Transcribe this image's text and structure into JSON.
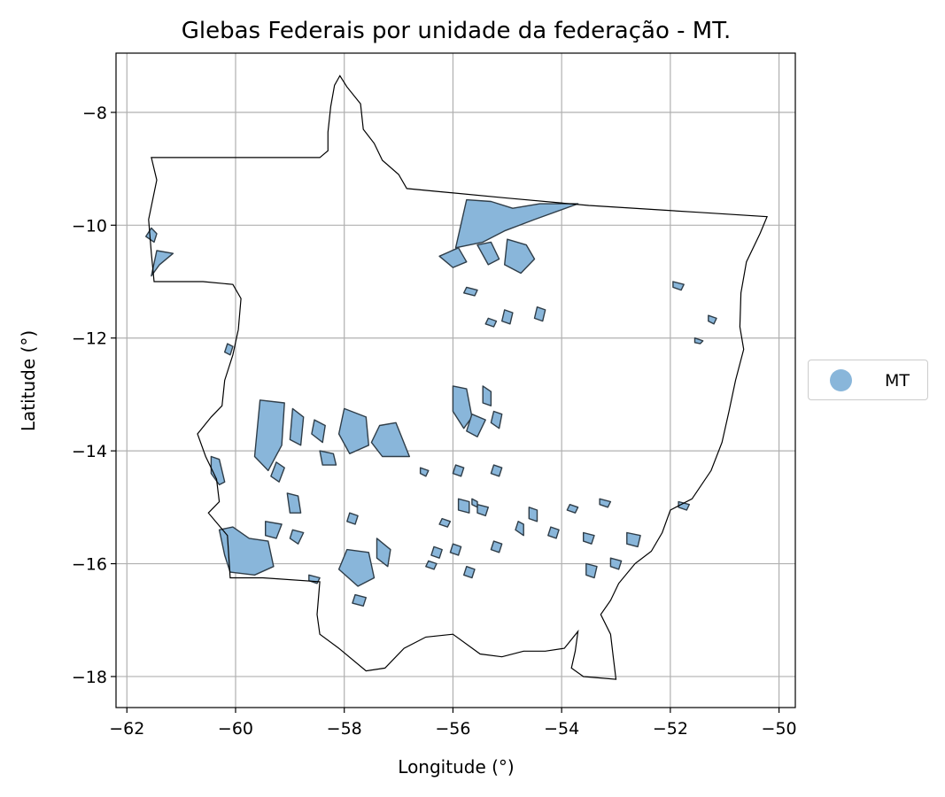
{
  "chart_data": {
    "type": "map",
    "title": "Glebas Federais por unidade da federação - MT.",
    "xlabel": "Longitude (°)",
    "ylabel": "Latitude (°)",
    "xlim": [
      -62.2,
      -49.7
    ],
    "ylim": [
      -18.55,
      -6.95
    ],
    "xticks": [
      -62,
      -60,
      -58,
      -56,
      -54,
      -52,
      -50
    ],
    "yticks": [
      -8,
      -10,
      -12,
      -14,
      -16,
      -18
    ],
    "xtick_labels": [
      "−62",
      "−60",
      "−58",
      "−56",
      "−54",
      "−52",
      "−50"
    ],
    "ytick_labels": [
      "−8",
      "−10",
      "−12",
      "−14",
      "−16",
      "−18"
    ],
    "grid": true,
    "legend": {
      "placement": "outside-right",
      "entries": [
        {
          "label": "MT",
          "color": "#89b6da"
        }
      ]
    },
    "colors": {
      "fill": "#89b6da",
      "edge": "#2f3d48",
      "boundary": "#000000",
      "grid": "#b0b0b0"
    },
    "state_boundary": [
      [
        -61.55,
        -8.8
      ],
      [
        -59.55,
        -8.8
      ],
      [
        -58.45,
        -8.8
      ],
      [
        -58.3,
        -8.68
      ],
      [
        -58.3,
        -8.35
      ],
      [
        -58.25,
        -7.9
      ],
      [
        -58.18,
        -7.52
      ],
      [
        -58.08,
        -7.35
      ],
      [
        -57.95,
        -7.55
      ],
      [
        -57.7,
        -7.85
      ],
      [
        -57.65,
        -8.3
      ],
      [
        -57.45,
        -8.55
      ],
      [
        -57.3,
        -8.85
      ],
      [
        -57.0,
        -9.1
      ],
      [
        -56.85,
        -9.35
      ],
      [
        -56.3,
        -9.4
      ],
      [
        -55.0,
        -9.52
      ],
      [
        -53.5,
        -9.65
      ],
      [
        -51.5,
        -9.77
      ],
      [
        -50.22,
        -9.85
      ],
      [
        -50.35,
        -10.15
      ],
      [
        -50.6,
        -10.65
      ],
      [
        -50.7,
        -11.2
      ],
      [
        -50.72,
        -11.8
      ],
      [
        -50.65,
        -12.2
      ],
      [
        -50.8,
        -12.75
      ],
      [
        -50.92,
        -13.3
      ],
      [
        -51.05,
        -13.85
      ],
      [
        -51.25,
        -14.35
      ],
      [
        -51.6,
        -14.85
      ],
      [
        -52.0,
        -15.05
      ],
      [
        -52.15,
        -15.45
      ],
      [
        -52.35,
        -15.78
      ],
      [
        -52.65,
        -16.0
      ],
      [
        -52.95,
        -16.35
      ],
      [
        -53.1,
        -16.65
      ],
      [
        -53.28,
        -16.9
      ],
      [
        -53.1,
        -17.25
      ],
      [
        -53.05,
        -17.65
      ],
      [
        -53.0,
        -18.05
      ],
      [
        -53.6,
        -18.0
      ],
      [
        -53.82,
        -17.85
      ],
      [
        -53.75,
        -17.55
      ],
      [
        -53.7,
        -17.2
      ],
      [
        -53.95,
        -17.5
      ],
      [
        -54.3,
        -17.55
      ],
      [
        -54.7,
        -17.55
      ],
      [
        -55.1,
        -17.65
      ],
      [
        -55.5,
        -17.6
      ],
      [
        -56.0,
        -17.25
      ],
      [
        -56.5,
        -17.3
      ],
      [
        -56.9,
        -17.5
      ],
      [
        -57.25,
        -17.85
      ],
      [
        -57.6,
        -17.9
      ],
      [
        -58.1,
        -17.5
      ],
      [
        -58.45,
        -17.25
      ],
      [
        -58.5,
        -16.9
      ],
      [
        -58.45,
        -16.32
      ],
      [
        -59.5,
        -16.25
      ],
      [
        -60.1,
        -16.25
      ],
      [
        -60.15,
        -15.5
      ],
      [
        -60.5,
        -15.1
      ],
      [
        -60.3,
        -14.9
      ],
      [
        -60.35,
        -14.5
      ],
      [
        -60.55,
        -14.1
      ],
      [
        -60.7,
        -13.7
      ],
      [
        -60.45,
        -13.4
      ],
      [
        -60.25,
        -13.2
      ],
      [
        -60.2,
        -12.75
      ],
      [
        -60.05,
        -12.3
      ],
      [
        -59.95,
        -11.85
      ],
      [
        -59.9,
        -11.3
      ],
      [
        -60.05,
        -11.05
      ],
      [
        -60.6,
        -11.0
      ],
      [
        -61.5,
        -11.0
      ],
      [
        -61.55,
        -10.5
      ],
      [
        -61.6,
        -9.9
      ],
      [
        -61.45,
        -9.2
      ],
      [
        -61.55,
        -8.8
      ]
    ],
    "land_parcels": [
      [
        [
          -55.95,
          -10.4
        ],
        [
          -55.75,
          -9.55
        ],
        [
          -55.3,
          -9.58
        ],
        [
          -54.9,
          -9.7
        ],
        [
          -54.4,
          -9.62
        ],
        [
          -53.7,
          -9.62
        ],
        [
          -54.5,
          -9.9
        ],
        [
          -55.05,
          -10.1
        ],
        [
          -55.45,
          -10.3
        ]
      ],
      [
        [
          -55.0,
          -10.25
        ],
        [
          -54.65,
          -10.35
        ],
        [
          -54.5,
          -10.6
        ],
        [
          -54.75,
          -10.85
        ],
        [
          -55.05,
          -10.7
        ]
      ],
      [
        [
          -55.55,
          -10.35
        ],
        [
          -55.3,
          -10.3
        ],
        [
          -55.15,
          -10.6
        ],
        [
          -55.35,
          -10.7
        ]
      ],
      [
        [
          -56.25,
          -10.55
        ],
        [
          -55.9,
          -10.4
        ],
        [
          -55.75,
          -10.65
        ],
        [
          -56.0,
          -10.75
        ]
      ],
      [
        [
          -61.55,
          -10.05
        ],
        [
          -61.45,
          -10.15
        ],
        [
          -61.5,
          -10.3
        ],
        [
          -61.65,
          -10.2
        ]
      ],
      [
        [
          -61.45,
          -10.45
        ],
        [
          -61.15,
          -10.5
        ],
        [
          -61.4,
          -10.7
        ],
        [
          -61.55,
          -10.9
        ]
      ],
      [
        [
          -59.55,
          -13.1
        ],
        [
          -59.1,
          -13.15
        ],
        [
          -59.15,
          -13.9
        ],
        [
          -59.4,
          -14.35
        ],
        [
          -59.65,
          -14.1
        ]
      ],
      [
        [
          -58.95,
          -13.25
        ],
        [
          -58.75,
          -13.4
        ],
        [
          -58.8,
          -13.9
        ],
        [
          -59.0,
          -13.8
        ]
      ],
      [
        [
          -58.0,
          -13.25
        ],
        [
          -57.6,
          -13.4
        ],
        [
          -57.55,
          -13.9
        ],
        [
          -57.9,
          -14.05
        ],
        [
          -58.1,
          -13.7
        ]
      ],
      [
        [
          -57.35,
          -13.55
        ],
        [
          -57.05,
          -13.5
        ],
        [
          -56.8,
          -14.1
        ],
        [
          -57.3,
          -14.1
        ],
        [
          -57.5,
          -13.85
        ]
      ],
      [
        [
          -58.55,
          -13.45
        ],
        [
          -58.35,
          -13.55
        ],
        [
          -58.4,
          -13.85
        ],
        [
          -58.6,
          -13.7
        ]
      ],
      [
        [
          -58.45,
          -14.0
        ],
        [
          -58.2,
          -14.05
        ],
        [
          -58.15,
          -14.25
        ],
        [
          -58.4,
          -14.25
        ]
      ],
      [
        [
          -59.25,
          -14.2
        ],
        [
          -59.1,
          -14.3
        ],
        [
          -59.2,
          -14.55
        ],
        [
          -59.35,
          -14.45
        ]
      ],
      [
        [
          -56.0,
          -12.85
        ],
        [
          -55.75,
          -12.9
        ],
        [
          -55.65,
          -13.4
        ],
        [
          -55.8,
          -13.6
        ],
        [
          -56.0,
          -13.3
        ]
      ],
      [
        [
          -55.65,
          -13.35
        ],
        [
          -55.4,
          -13.45
        ],
        [
          -55.55,
          -13.75
        ],
        [
          -55.75,
          -13.65
        ]
      ],
      [
        [
          -55.45,
          -12.85
        ],
        [
          -55.3,
          -12.95
        ],
        [
          -55.3,
          -13.2
        ],
        [
          -55.45,
          -13.15
        ]
      ],
      [
        [
          -55.25,
          -13.3
        ],
        [
          -55.1,
          -13.35
        ],
        [
          -55.15,
          -13.6
        ],
        [
          -55.3,
          -13.5
        ]
      ],
      [
        [
          -60.45,
          -14.1
        ],
        [
          -60.3,
          -14.15
        ],
        [
          -60.2,
          -14.55
        ],
        [
          -60.3,
          -14.6
        ],
        [
          -60.45,
          -14.4
        ]
      ],
      [
        [
          -60.3,
          -15.4
        ],
        [
          -60.05,
          -15.35
        ],
        [
          -59.75,
          -15.55
        ],
        [
          -59.4,
          -15.6
        ],
        [
          -59.3,
          -16.05
        ],
        [
          -59.65,
          -16.2
        ],
        [
          -60.1,
          -16.15
        ],
        [
          -60.2,
          -15.85
        ]
      ],
      [
        [
          -59.45,
          -15.25
        ],
        [
          -59.15,
          -15.3
        ],
        [
          -59.25,
          -15.55
        ],
        [
          -59.45,
          -15.5
        ]
      ],
      [
        [
          -58.95,
          -15.4
        ],
        [
          -58.75,
          -15.45
        ],
        [
          -58.85,
          -15.65
        ],
        [
          -59.0,
          -15.55
        ]
      ],
      [
        [
          -57.95,
          -15.75
        ],
        [
          -57.55,
          -15.8
        ],
        [
          -57.45,
          -16.25
        ],
        [
          -57.75,
          -16.4
        ],
        [
          -58.1,
          -16.1
        ]
      ],
      [
        [
          -57.4,
          -15.55
        ],
        [
          -57.15,
          -15.75
        ],
        [
          -57.2,
          -16.05
        ],
        [
          -57.4,
          -15.9
        ]
      ],
      [
        [
          -57.8,
          -16.55
        ],
        [
          -57.6,
          -16.6
        ],
        [
          -57.65,
          -16.75
        ],
        [
          -57.85,
          -16.7
        ]
      ],
      [
        [
          -59.05,
          -14.75
        ],
        [
          -58.85,
          -14.8
        ],
        [
          -58.8,
          -15.1
        ],
        [
          -59.0,
          -15.1
        ]
      ],
      [
        [
          -58.65,
          -16.2
        ],
        [
          -58.45,
          -16.25
        ],
        [
          -58.5,
          -16.35
        ],
        [
          -58.65,
          -16.3
        ]
      ],
      [
        [
          -55.9,
          -14.85
        ],
        [
          -55.7,
          -14.9
        ],
        [
          -55.7,
          -15.1
        ],
        [
          -55.9,
          -15.05
        ]
      ],
      [
        [
          -55.55,
          -14.95
        ],
        [
          -55.35,
          -15.0
        ],
        [
          -55.4,
          -15.15
        ],
        [
          -55.55,
          -15.1
        ]
      ],
      [
        [
          -54.6,
          -15.0
        ],
        [
          -54.45,
          -15.05
        ],
        [
          -54.45,
          -15.25
        ],
        [
          -54.6,
          -15.2
        ]
      ],
      [
        [
          -53.6,
          -15.45
        ],
        [
          -53.4,
          -15.5
        ],
        [
          -53.45,
          -15.65
        ],
        [
          -53.6,
          -15.6
        ]
      ],
      [
        [
          -52.8,
          -15.45
        ],
        [
          -52.55,
          -15.5
        ],
        [
          -52.6,
          -15.7
        ],
        [
          -52.8,
          -15.65
        ]
      ],
      [
        [
          -53.3,
          -14.85
        ],
        [
          -53.1,
          -14.9
        ],
        [
          -53.15,
          -15.0
        ],
        [
          -53.3,
          -14.95
        ]
      ],
      [
        [
          -51.85,
          -14.9
        ],
        [
          -51.65,
          -14.95
        ],
        [
          -51.7,
          -15.05
        ],
        [
          -51.85,
          -15.0
        ]
      ],
      [
        [
          -55.25,
          -15.6
        ],
        [
          -55.1,
          -15.65
        ],
        [
          -55.15,
          -15.8
        ],
        [
          -55.3,
          -15.75
        ]
      ],
      [
        [
          -54.8,
          -15.25
        ],
        [
          -54.7,
          -15.3
        ],
        [
          -54.7,
          -15.5
        ],
        [
          -54.85,
          -15.4
        ]
      ],
      [
        [
          -56.0,
          -15.65
        ],
        [
          -55.85,
          -15.7
        ],
        [
          -55.9,
          -15.85
        ],
        [
          -56.05,
          -15.8
        ]
      ],
      [
        [
          -56.2,
          -15.2
        ],
        [
          -56.05,
          -15.25
        ],
        [
          -56.1,
          -15.35
        ],
        [
          -56.25,
          -15.3
        ]
      ],
      [
        [
          -51.95,
          -11.0
        ],
        [
          -51.75,
          -11.05
        ],
        [
          -51.8,
          -11.15
        ],
        [
          -51.95,
          -11.1
        ]
      ],
      [
        [
          -51.3,
          -11.6
        ],
        [
          -51.15,
          -11.65
        ],
        [
          -51.2,
          -11.75
        ],
        [
          -51.3,
          -11.7
        ]
      ],
      [
        [
          -51.55,
          -12.0
        ],
        [
          -51.4,
          -12.05
        ],
        [
          -51.45,
          -12.1
        ],
        [
          -51.55,
          -12.08
        ]
      ],
      [
        [
          -55.05,
          -11.5
        ],
        [
          -54.9,
          -11.55
        ],
        [
          -54.95,
          -11.75
        ],
        [
          -55.1,
          -11.7
        ]
      ],
      [
        [
          -54.45,
          -11.45
        ],
        [
          -54.3,
          -11.5
        ],
        [
          -54.35,
          -11.7
        ],
        [
          -54.5,
          -11.65
        ]
      ],
      [
        [
          -55.35,
          -11.65
        ],
        [
          -55.2,
          -11.7
        ],
        [
          -55.25,
          -11.8
        ],
        [
          -55.4,
          -11.75
        ]
      ],
      [
        [
          -55.75,
          -11.1
        ],
        [
          -55.55,
          -11.15
        ],
        [
          -55.6,
          -11.25
        ],
        [
          -55.8,
          -11.2
        ]
      ],
      [
        [
          -53.55,
          -16.0
        ],
        [
          -53.35,
          -16.05
        ],
        [
          -53.4,
          -16.25
        ],
        [
          -53.55,
          -16.2
        ]
      ],
      [
        [
          -53.1,
          -15.9
        ],
        [
          -52.9,
          -15.95
        ],
        [
          -52.95,
          -16.1
        ],
        [
          -53.1,
          -16.05
        ]
      ],
      [
        [
          -56.35,
          -15.7
        ],
        [
          -56.2,
          -15.75
        ],
        [
          -56.25,
          -15.9
        ],
        [
          -56.4,
          -15.85
        ]
      ],
      [
        [
          -54.2,
          -15.35
        ],
        [
          -54.05,
          -15.4
        ],
        [
          -54.1,
          -15.55
        ],
        [
          -54.25,
          -15.5
        ]
      ],
      [
        [
          -53.85,
          -14.95
        ],
        [
          -53.7,
          -15.0
        ],
        [
          -53.75,
          -15.1
        ],
        [
          -53.9,
          -15.05
        ]
      ],
      [
        [
          -56.6,
          -14.3
        ],
        [
          -56.45,
          -14.35
        ],
        [
          -56.5,
          -14.45
        ],
        [
          -56.6,
          -14.4
        ]
      ],
      [
        [
          -55.95,
          -14.25
        ],
        [
          -55.8,
          -14.3
        ],
        [
          -55.85,
          -14.45
        ],
        [
          -56.0,
          -14.4
        ]
      ],
      [
        [
          -55.25,
          -14.25
        ],
        [
          -55.1,
          -14.3
        ],
        [
          -55.15,
          -14.45
        ],
        [
          -55.3,
          -14.4
        ]
      ],
      [
        [
          -55.75,
          -16.05
        ],
        [
          -55.6,
          -16.1
        ],
        [
          -55.65,
          -16.25
        ],
        [
          -55.8,
          -16.2
        ]
      ],
      [
        [
          -56.45,
          -15.95
        ],
        [
          -56.3,
          -16.0
        ],
        [
          -56.35,
          -16.1
        ],
        [
          -56.5,
          -16.05
        ]
      ],
      [
        [
          -60.15,
          -12.1
        ],
        [
          -60.05,
          -12.15
        ],
        [
          -60.1,
          -12.3
        ],
        [
          -60.2,
          -12.25
        ]
      ],
      [
        [
          -57.9,
          -15.1
        ],
        [
          -57.75,
          -15.15
        ],
        [
          -57.8,
          -15.3
        ],
        [
          -57.95,
          -15.25
        ]
      ],
      [
        [
          -55.65,
          -14.85
        ],
        [
          -55.55,
          -14.9
        ],
        [
          -55.55,
          -15.0
        ],
        [
          -55.65,
          -14.95
        ]
      ]
    ]
  }
}
